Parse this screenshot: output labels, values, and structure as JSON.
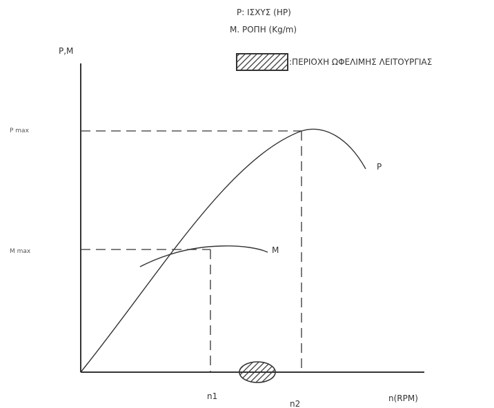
{
  "legend": {
    "p_line": "P: ΙΣΧΥΣ (HP)",
    "m_line": "M. ΡΟΠΗ (Kg/m)",
    "swatch_text": ":ΠΕΡΙΟΧΗ ΩΦΕΛΙΜΗΣ ΛΕΙΤΟΥΡΓΙΑΣ"
  },
  "axes": {
    "y_label": "P,M",
    "x_label": "n(RPM)",
    "y_tick_pmax": "P max",
    "y_tick_mmax": "M max",
    "x_tick_n1": "n1",
    "x_tick_n2": "n2"
  },
  "curves": {
    "p_label": "P",
    "m_label": "M"
  },
  "colors": {
    "line": "#333333",
    "background": "#ffffff"
  }
}
